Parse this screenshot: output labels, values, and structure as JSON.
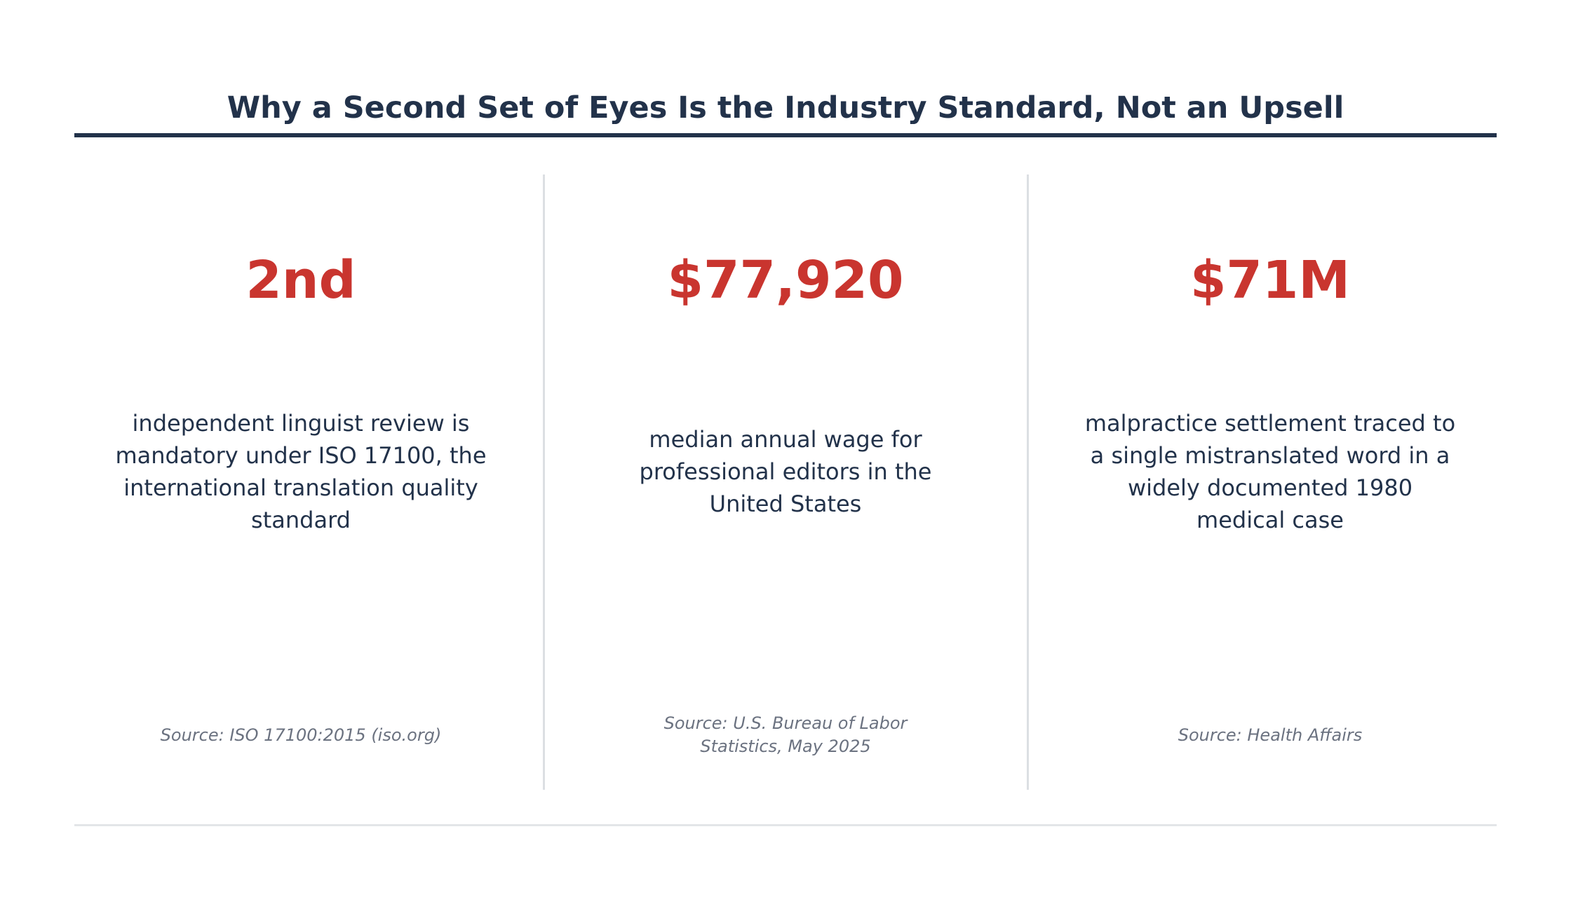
{
  "title": "Why a Second Set of Eyes Is the Industry Standard, Not an Upsell",
  "colors": {
    "title": "#22324a",
    "accent": "#c9352f",
    "body_text": "#22324a",
    "source_text": "#6b7280",
    "divider": "#dcdfe3"
  },
  "stats": [
    {
      "value": "2nd",
      "description": "independent linguist review is mandatory under ISO 17100, the international translation quality standard",
      "source": "Source: ISO 17100:2015 (iso.org)"
    },
    {
      "value": "$77,920",
      "description": "median annual wage for professional editors in the United States",
      "source": "Source: U.S. Bureau of Labor Statistics, May 2025"
    },
    {
      "value": "$71M",
      "description": "malpractice settlement traced to a single mistranslated word in a widely documented 1980 medical case",
      "source": "Source: Health Affairs"
    }
  ]
}
